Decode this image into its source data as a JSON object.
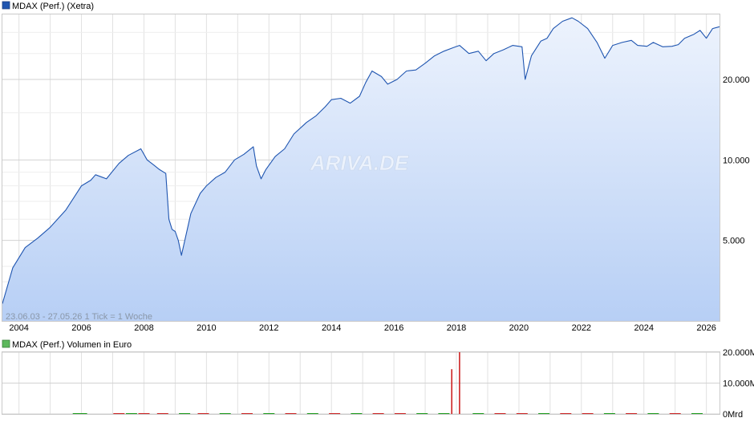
{
  "watermark": "ARIVA.DE",
  "chart_data": [
    {
      "type": "area",
      "legend": "MDAX (Perf.) (Xetra)",
      "info": "23.06.03 - 27.05.26   1 Tick = 1 Woche",
      "colors": {
        "line": "#1f55b0",
        "fill_top": "#edf3fd",
        "fill_bottom": "#b7cff5",
        "legend_box": "#1f55b0"
      },
      "y_scale": "log",
      "ylim": [
        2500,
        35000
      ],
      "xlim": [
        2003.47,
        2026.42
      ],
      "x_ticks": [
        2004,
        2006,
        2008,
        2010,
        2012,
        2014,
        2016,
        2018,
        2020,
        2022,
        2024,
        2026
      ],
      "x_tick_labels": [
        "2004",
        "2006",
        "2008",
        "2010",
        "2012",
        "2014",
        "2016",
        "2018",
        "2020",
        "2022",
        "2024",
        "2026"
      ],
      "y_ticks": [
        5000,
        10000,
        20000
      ],
      "y_tick_labels": [
        "5.000",
        "10.000",
        "20.000"
      ],
      "grid": true,
      "x": [
        2003.47,
        2003.8,
        2004.2,
        2004.6,
        2005.0,
        2005.5,
        2006.0,
        2006.3,
        2006.45,
        2006.8,
        2007.2,
        2007.5,
        2007.9,
        2008.1,
        2008.3,
        2008.5,
        2008.7,
        2008.8,
        2008.9,
        2009.0,
        2009.1,
        2009.2,
        2009.5,
        2009.8,
        2010.0,
        2010.3,
        2010.6,
        2010.9,
        2011.2,
        2011.5,
        2011.6,
        2011.75,
        2011.9,
        2012.2,
        2012.5,
        2012.8,
        2013.2,
        2013.5,
        2013.8,
        2014.0,
        2014.3,
        2014.6,
        2014.9,
        2015.1,
        2015.3,
        2015.6,
        2015.8,
        2016.1,
        2016.4,
        2016.7,
        2017.0,
        2017.3,
        2017.6,
        2017.9,
        2018.1,
        2018.4,
        2018.7,
        2018.95,
        2019.2,
        2019.5,
        2019.8,
        2020.1,
        2020.2,
        2020.4,
        2020.7,
        2020.9,
        2021.1,
        2021.4,
        2021.7,
        2021.9,
        2022.2,
        2022.5,
        2022.75,
        2023.0,
        2023.3,
        2023.6,
        2023.8,
        2024.1,
        2024.3,
        2024.6,
        2024.9,
        2025.1,
        2025.3,
        2025.6,
        2025.8,
        2026.0,
        2026.2,
        2026.42
      ],
      "y": [
        2900,
        3950,
        4700,
        5100,
        5600,
        6500,
        8000,
        8400,
        8800,
        8500,
        9700,
        10400,
        11000,
        10000,
        9600,
        9200,
        8900,
        6000,
        5500,
        5400,
        5000,
        4400,
        6300,
        7500,
        8000,
        8600,
        9000,
        10000,
        10500,
        11200,
        9500,
        8500,
        9200,
        10300,
        11000,
        12500,
        13800,
        14600,
        15800,
        16800,
        17000,
        16300,
        17300,
        19500,
        21500,
        20500,
        19200,
        20000,
        21500,
        21700,
        23000,
        24500,
        25500,
        26300,
        26800,
        25000,
        25500,
        23500,
        25000,
        25800,
        26800,
        26500,
        20000,
        24500,
        27800,
        28500,
        31000,
        33000,
        34000,
        33000,
        31000,
        27500,
        24000,
        26800,
        27500,
        28000,
        26800,
        26600,
        27500,
        26500,
        26600,
        27000,
        28500,
        29500,
        30500,
        28500,
        31000,
        31500
      ]
    },
    {
      "type": "bar",
      "legend": "MDAX (Perf.) Volumen in Euro",
      "colors": {
        "legend_box": "#5cb85c",
        "up": "#1a9a1a",
        "down": "#cc2222"
      },
      "ylim": [
        0,
        20000
      ],
      "x_ticks": [
        2004,
        2006,
        2008,
        2010,
        2012,
        2014,
        2016,
        2018,
        2020,
        2022,
        2024,
        2026
      ],
      "y_ticks": [
        0,
        10000,
        20000
      ],
      "y_tick_labels": [
        "0Mrd",
        "10.000M",
        "20.000M"
      ],
      "grid": true,
      "x": [
        2005.9,
        2006.0,
        2007.2,
        2007.6,
        2008.0,
        2008.6,
        2009.3,
        2009.9,
        2010.6,
        2011.3,
        2012.0,
        2012.7,
        2013.4,
        2014.1,
        2014.8,
        2015.5,
        2016.2,
        2016.9,
        2017.6,
        2017.85,
        2018.1,
        2018.7,
        2019.4,
        2020.1,
        2020.8,
        2021.5,
        2022.2,
        2022.9,
        2023.6,
        2024.3,
        2025.0,
        2025.7
      ],
      "values": [
        250,
        250,
        180,
        180,
        180,
        180,
        160,
        150,
        160,
        150,
        150,
        160,
        170,
        150,
        160,
        160,
        160,
        160,
        160,
        14500,
        20000,
        170,
        160,
        180,
        170,
        170,
        160,
        150,
        150,
        150,
        150,
        150
      ],
      "direction": [
        "up",
        "up",
        "down",
        "up",
        "down",
        "down",
        "up",
        "down",
        "up",
        "down",
        "up",
        "down",
        "up",
        "down",
        "up",
        "down",
        "down",
        "up",
        "up",
        "down",
        "down",
        "up",
        "down",
        "down",
        "up",
        "down",
        "down",
        "up",
        "down",
        "up",
        "down",
        "up"
      ]
    }
  ]
}
